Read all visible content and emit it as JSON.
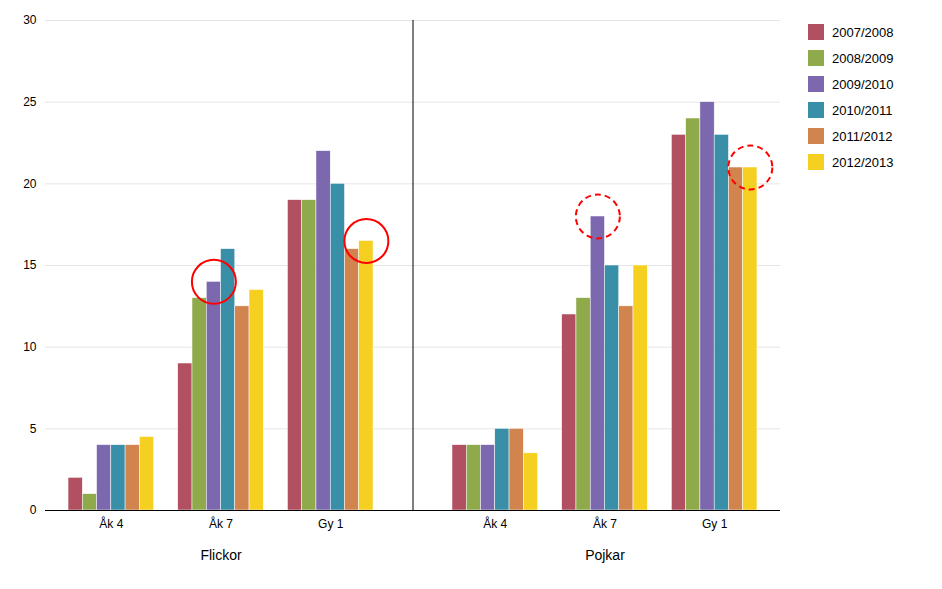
{
  "chart_data": {
    "type": "bar",
    "categories": [
      "Åk 4",
      "Åk 7",
      "Gy 1",
      "Åk 4",
      "Åk 7",
      "Gy 1"
    ],
    "group_labels": [
      "Flickor",
      "Flickor",
      "Flickor",
      "Pojkar",
      "Pojkar",
      "Pojkar"
    ],
    "series": [
      {
        "name": "2007/2008",
        "color": "#b05060",
        "values": [
          2,
          9,
          19,
          4,
          12,
          23
        ]
      },
      {
        "name": "2008/2009",
        "color": "#8faa4b",
        "values": [
          1,
          13,
          19,
          4,
          13,
          24
        ]
      },
      {
        "name": "2009/2010",
        "color": "#7b68ae",
        "values": [
          4,
          14,
          22,
          4,
          18,
          25
        ]
      },
      {
        "name": "2010/2011",
        "color": "#3a8fa8",
        "values": [
          4,
          16,
          20,
          5,
          15,
          23
        ]
      },
      {
        "name": "2011/2012",
        "color": "#d2844e",
        "values": [
          4,
          12.5,
          16,
          5,
          12.5,
          21
        ]
      },
      {
        "name": "2012/2013",
        "color": "#f5d020",
        "values": [
          4.5,
          13.5,
          16.5,
          3.5,
          15,
          21
        ]
      }
    ],
    "highlights": [
      {
        "category_index": 1,
        "series": "2009/2010",
        "line_style": "solid",
        "color": "red"
      },
      {
        "category_index": 2,
        "series": "2012/2013",
        "line_style": "solid",
        "color": "red"
      },
      {
        "category_index": 4,
        "series": "2009/2010",
        "line_style": "dashed",
        "color": "red"
      },
      {
        "category_index": 5,
        "series": "2012/2013",
        "line_style": "dashed",
        "color": "red"
      }
    ],
    "ylim": [
      0,
      30
    ],
    "yticks": [
      0,
      5,
      10,
      15,
      20,
      25,
      30
    ],
    "grid": true,
    "legend": "right"
  }
}
